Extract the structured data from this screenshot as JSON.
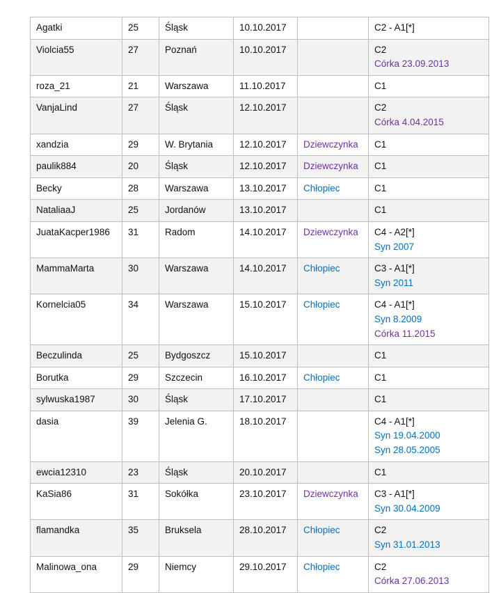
{
  "colors": {
    "girl": "#7030a0",
    "boy": "#0070c0",
    "row_alt": "#f2f2f2"
  },
  "rows": [
    {
      "nick": "Agatki",
      "age": "25",
      "place": "Śląsk",
      "date": "10.10.2017",
      "gender": "",
      "cycle": "C2 - A1[*]",
      "kids": []
    },
    {
      "nick": "Violcia55",
      "age": "27",
      "place": "Poznań",
      "date": "10.10.2017",
      "gender": "",
      "cycle": "C2",
      "kids": [
        {
          "text": "Córka 23.09.2013",
          "type": "girl"
        }
      ]
    },
    {
      "nick": "roza_21",
      "age": "21",
      "place": "Warszawa",
      "date": "11.10.2017",
      "gender": "",
      "cycle": "C1",
      "kids": []
    },
    {
      "nick": "VanjaLind",
      "age": "27",
      "place": "Śląsk",
      "date": "12.10.2017",
      "gender": "",
      "cycle": "C2",
      "kids": [
        {
          "text": "Córka 4.04.2015",
          "type": "girl"
        }
      ]
    },
    {
      "nick": "xandzia",
      "age": "29",
      "place": "W. Brytania",
      "date": "12.10.2017",
      "gender": "Dziewczynka",
      "gtype": "girl",
      "cycle": "C1",
      "kids": []
    },
    {
      "nick": "paulik884",
      "age": "20",
      "place": "Śląsk",
      "date": "12.10.2017",
      "gender": "Dziewczynka",
      "gtype": "girl",
      "cycle": "C1",
      "kids": []
    },
    {
      "nick": "Becky",
      "age": "28",
      "place": "Warszawa",
      "date": "13.10.2017",
      "gender": "Chłopiec",
      "gtype": "boy",
      "cycle": "C1",
      "kids": []
    },
    {
      "nick": "NataliaaJ",
      "age": "25",
      "place": "Jordanów",
      "date": "13.10.2017",
      "gender": "",
      "cycle": "C1",
      "kids": []
    },
    {
      "nick": "JuataKacper1986",
      "age": "31",
      "place": "Radom",
      "date": "14.10.2017",
      "gender": "Dziewczynka",
      "gtype": "girl",
      "cycle": "C4 - A2[*]",
      "kids": [
        {
          "text": "Syn 2007",
          "type": "boy"
        }
      ]
    },
    {
      "nick": "MammaMarta",
      "age": "30",
      "place": "Warszawa",
      "date": "14.10.2017",
      "gender": "Chłopiec",
      "gtype": "boy",
      "cycle": "C3 - A1[*]",
      "kids": [
        {
          "text": "Syn 2011",
          "type": "boy"
        }
      ]
    },
    {
      "nick": "Kornelcia05",
      "age": "34",
      "place": "Warszawa",
      "date": "15.10.2017",
      "gender": "Chłopiec",
      "gtype": "boy",
      "cycle": "C4 - A1[*]",
      "kids": [
        {
          "text": "Syn 8.2009",
          "type": "boy"
        },
        {
          "text": "Córka 11.2015",
          "type": "girl"
        }
      ]
    },
    {
      "nick": "Beczulinda",
      "age": "25",
      "place": "Bydgoszcz",
      "date": "15.10.2017",
      "gender": "",
      "cycle": "C1",
      "kids": []
    },
    {
      "nick": "Borutka",
      "age": "29",
      "place": "Szczecin",
      "date": "16.10.2017",
      "gender": "Chłopiec",
      "gtype": "boy",
      "cycle": "C1",
      "kids": []
    },
    {
      "nick": "sylwuska1987",
      "age": "30",
      "place": "Śląsk",
      "date": "17.10.2017",
      "gender": "",
      "cycle": "C1",
      "kids": []
    },
    {
      "nick": "dasia",
      "age": "39",
      "place": "Jelenia G.",
      "date": "18.10.2017",
      "gender": "",
      "cycle": "C4 - A1[*]",
      "kids": [
        {
          "text": "Syn 19.04.2000",
          "type": "boy"
        },
        {
          "text": "Syn 28.05.2005",
          "type": "boy"
        }
      ]
    },
    {
      "nick": "ewcia12310",
      "age": "23",
      "place": "Śląsk",
      "date": "20.10.2017",
      "gender": "",
      "cycle": "C1",
      "kids": []
    },
    {
      "nick": "KaSia86",
      "age": "31",
      "place": "Sokółka",
      "date": "23.10.2017",
      "gender": "Dziewczynka",
      "gtype": "girl",
      "cycle": "C3 - A1[*]",
      "kids": [
        {
          "text": "Syn 30.04.2009",
          "type": "boy"
        }
      ]
    },
    {
      "nick": "flamandka",
      "age": "35",
      "place": "Bruksela",
      "date": "28.10.2017",
      "gender": "Chłopiec",
      "gtype": "boy",
      "cycle": "C2",
      "kids": [
        {
          "text": "Syn 31.01.2013",
          "type": "boy"
        }
      ]
    },
    {
      "nick": "Malinowa_ona",
      "age": "29",
      "place": "Niemcy",
      "date": "29.10.2017",
      "gender": "Chłopiec",
      "gtype": "boy",
      "cycle": "C2",
      "kids": [
        {
          "text": "Córka 27.06.2013",
          "type": "girl"
        }
      ]
    }
  ]
}
